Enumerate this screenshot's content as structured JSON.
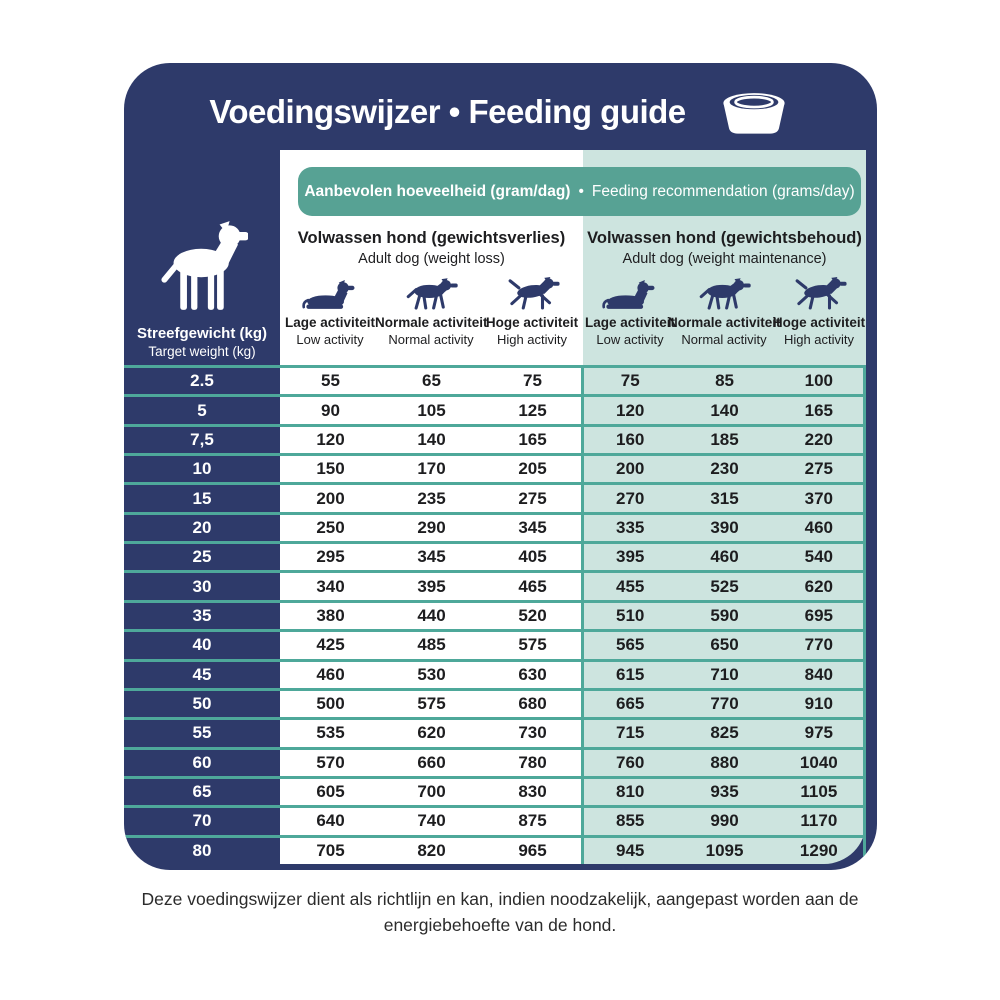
{
  "header": {
    "title": "Voedingswijzer • Feeding guide"
  },
  "banner": {
    "nl": "Aanbevolen hoeveelheid (gram/dag)",
    "separator": "•",
    "en": "Feeding recommendation (grams/day)"
  },
  "weight_column": {
    "nl": "Streefgewicht (kg)",
    "en": "Target weight (kg)"
  },
  "groups": [
    {
      "title_nl": "Volwassen hond (gewichtsverlies)",
      "title_en": "Adult dog (weight loss)",
      "activities": [
        {
          "nl": "Lage activiteit",
          "en": "Low activity",
          "icon": "dog-lying-icon"
        },
        {
          "nl": "Normale activiteit",
          "en": "Normal activity",
          "icon": "dog-walking-icon"
        },
        {
          "nl": "Hoge activiteit",
          "en": "High activity",
          "icon": "dog-running-icon"
        }
      ]
    },
    {
      "title_nl": "Volwassen hond (gewichtsbehoud)",
      "title_en": "Adult dog (weight maintenance)",
      "activities": [
        {
          "nl": "Lage activiteit",
          "en": "Low activity",
          "icon": "dog-lying-icon"
        },
        {
          "nl": "Normale activiteit",
          "en": "Normal activity",
          "icon": "dog-walking-icon"
        },
        {
          "nl": "Hoge activiteit",
          "en": "High activity",
          "icon": "dog-running-icon"
        }
      ]
    }
  ],
  "chart_data": {
    "type": "table",
    "title": "Voedingswijzer • Feeding guide",
    "subtitle": "Aanbevolen hoeveelheid (gram/dag) • Feeding recommendation (grams/day)",
    "row_header": "Streefgewicht (kg) / Target weight (kg)",
    "column_groups": [
      "Volwassen hond (gewichtsverlies) / Adult dog (weight loss)",
      "Volwassen hond (gewichtsbehoud) / Adult dog (weight maintenance)"
    ],
    "columns": [
      "Lage activiteit / Low activity",
      "Normale activiteit / Normal activity",
      "Hoge activiteit / High activity"
    ],
    "rows": [
      {
        "weight": "2.5",
        "weight_loss": [
          55,
          65,
          75
        ],
        "weight_maintenance": [
          75,
          85,
          100
        ]
      },
      {
        "weight": "5",
        "weight_loss": [
          90,
          105,
          125
        ],
        "weight_maintenance": [
          120,
          140,
          165
        ]
      },
      {
        "weight": "7,5",
        "weight_loss": [
          120,
          140,
          165
        ],
        "weight_maintenance": [
          160,
          185,
          220
        ]
      },
      {
        "weight": "10",
        "weight_loss": [
          150,
          170,
          205
        ],
        "weight_maintenance": [
          200,
          230,
          275
        ]
      },
      {
        "weight": "15",
        "weight_loss": [
          200,
          235,
          275
        ],
        "weight_maintenance": [
          270,
          315,
          370
        ]
      },
      {
        "weight": "20",
        "weight_loss": [
          250,
          290,
          345
        ],
        "weight_maintenance": [
          335,
          390,
          460
        ]
      },
      {
        "weight": "25",
        "weight_loss": [
          295,
          345,
          405
        ],
        "weight_maintenance": [
          395,
          460,
          540
        ]
      },
      {
        "weight": "30",
        "weight_loss": [
          340,
          395,
          465
        ],
        "weight_maintenance": [
          455,
          525,
          620
        ]
      },
      {
        "weight": "35",
        "weight_loss": [
          380,
          440,
          520
        ],
        "weight_maintenance": [
          510,
          590,
          695
        ]
      },
      {
        "weight": "40",
        "weight_loss": [
          425,
          485,
          575
        ],
        "weight_maintenance": [
          565,
          650,
          770
        ]
      },
      {
        "weight": "45",
        "weight_loss": [
          460,
          530,
          630
        ],
        "weight_maintenance": [
          615,
          710,
          840
        ]
      },
      {
        "weight": "50",
        "weight_loss": [
          500,
          575,
          680
        ],
        "weight_maintenance": [
          665,
          770,
          910
        ]
      },
      {
        "weight": "55",
        "weight_loss": [
          535,
          620,
          730
        ],
        "weight_maintenance": [
          715,
          825,
          975
        ]
      },
      {
        "weight": "60",
        "weight_loss": [
          570,
          660,
          780
        ],
        "weight_maintenance": [
          760,
          880,
          1040
        ]
      },
      {
        "weight": "65",
        "weight_loss": [
          605,
          700,
          830
        ],
        "weight_maintenance": [
          810,
          935,
          1105
        ]
      },
      {
        "weight": "70",
        "weight_loss": [
          640,
          740,
          875
        ],
        "weight_maintenance": [
          855,
          990,
          1170
        ]
      },
      {
        "weight": "80",
        "weight_loss": [
          705,
          820,
          965
        ],
        "weight_maintenance": [
          945,
          1095,
          1290
        ]
      }
    ]
  },
  "footer": {
    "line1": "Deze voedingswijzer dient als richtlijn en kan, indien noodzakelijk, aangepast worden aan de",
    "line2": "energiebehoefte van de hond."
  },
  "icons": {
    "bowl": "dog-bowl-icon",
    "weight_column": "dog-standing-icon",
    "low_activity": "dog-lying-icon",
    "normal_activity": "dog-walking-icon",
    "high_activity": "dog-running-icon"
  },
  "colors": {
    "navy": "#2e3a6a",
    "teal": "#57a294",
    "mint": "#cde4df",
    "line": "#4ea89a",
    "ink": "#1d1d1f"
  }
}
